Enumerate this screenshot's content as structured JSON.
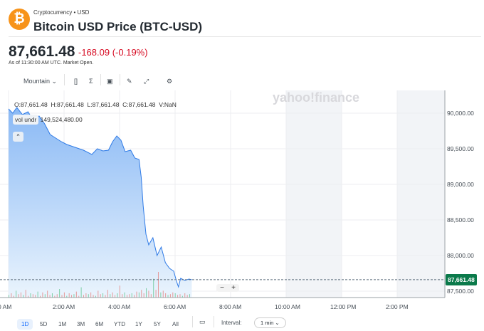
{
  "header": {
    "category": "Cryptocurrency • USD",
    "title": "Bitcoin USD Price (BTC-USD)",
    "logo_symbol": "₿"
  },
  "quote": {
    "price": "87,661.48",
    "change": "-168.09",
    "change_pct": "(-0.19%)",
    "as_of": "As of 11:30:00 AM UTC. Market Open."
  },
  "toolbar": {
    "chart_type": "Mountain",
    "icons": [
      "compare-bracket-icon",
      "indicators-sigma-icon",
      "calendar-event-icon",
      "draw-pencil-icon",
      "expand-icon",
      "settings-gear-icon"
    ]
  },
  "legend": {
    "ohlc": "O:87,661.48  H:87,661.48  L:87,661.48  C:87,661.48  V:NaN",
    "vol_label": "vol undr",
    "vol_value": "149,524,480.00",
    "collapse": "^"
  },
  "watermark": "yahoo!finance",
  "last_badge": "87,661.48",
  "zoom": {
    "minus": "−",
    "plus": "+"
  },
  "ranges": [
    "1D",
    "5D",
    "1M",
    "3M",
    "6M",
    "YTD",
    "1Y",
    "5Y",
    "All"
  ],
  "selected_range": "1D",
  "interval": {
    "label": "Interval:",
    "value": "1 min ⌄"
  },
  "chart_data": {
    "type": "area",
    "xlabel": "",
    "ylabel": "",
    "x_ticks": [
      {
        "h": 0,
        "label": "0 AM"
      },
      {
        "h": 2,
        "label": "2:00 AM"
      },
      {
        "h": 4,
        "label": "4:00 AM"
      },
      {
        "h": 6,
        "label": "6:00 AM"
      },
      {
        "h": 8,
        "label": "8:00 AM"
      },
      {
        "h": 10,
        "label": "10:00 AM"
      },
      {
        "h": 12,
        "label": "12:00 PM"
      },
      {
        "h": 14,
        "label": "2:00 PM"
      }
    ],
    "y_ticks": [
      {
        "v": 90000,
        "label": "90,000.00"
      },
      {
        "v": 89500,
        "label": "89,500.00"
      },
      {
        "v": 89000,
        "label": "89,000.00"
      },
      {
        "v": 88500,
        "label": "88,500.00"
      },
      {
        "v": 88000,
        "label": "88,000.00"
      },
      {
        "v": 87500,
        "label": "87,500.00"
      }
    ],
    "xlim": [
      0,
      15.7
    ],
    "ylim": [
      87400,
      90320
    ],
    "shaded_ranges": [
      [
        10,
        12
      ],
      [
        14,
        15.7
      ]
    ],
    "last_price": 87661.48,
    "series": [
      [
        0,
        90060
      ],
      [
        0.15,
        90000
      ],
      [
        0.3,
        90080
      ],
      [
        0.5,
        89980
      ],
      [
        0.7,
        90020
      ],
      [
        0.9,
        89900
      ],
      [
        1.1,
        89960
      ],
      [
        1.3,
        89850
      ],
      [
        1.5,
        89700
      ],
      [
        1.7,
        89650
      ],
      [
        1.9,
        89600
      ],
      [
        2.1,
        89560
      ],
      [
        2.4,
        89520
      ],
      [
        2.7,
        89480
      ],
      [
        3,
        89420
      ],
      [
        3.2,
        89500
      ],
      [
        3.4,
        89470
      ],
      [
        3.6,
        89480
      ],
      [
        3.75,
        89600
      ],
      [
        3.9,
        89680
      ],
      [
        4.05,
        89620
      ],
      [
        4.2,
        89460
      ],
      [
        4.4,
        89480
      ],
      [
        4.55,
        89370
      ],
      [
        4.7,
        89350
      ],
      [
        4.78,
        89100
      ],
      [
        4.85,
        88700
      ],
      [
        4.95,
        88300
      ],
      [
        5.05,
        88150
      ],
      [
        5.2,
        88250
      ],
      [
        5.35,
        88000
      ],
      [
        5.5,
        88120
      ],
      [
        5.65,
        87900
      ],
      [
        5.8,
        87820
      ],
      [
        5.95,
        87780
      ],
      [
        6.05,
        87640
      ],
      [
        6.12,
        87560
      ],
      [
        6.2,
        87680
      ],
      [
        6.35,
        87650
      ],
      [
        6.5,
        87670
      ],
      [
        6.6,
        87661
      ]
    ],
    "volume": [
      3,
      5,
      2,
      8,
      4,
      6,
      3,
      9,
      2,
      5,
      4,
      3,
      7,
      2,
      6,
      4,
      8,
      3,
      5,
      2,
      4,
      10,
      3,
      6,
      2,
      5,
      3,
      4,
      7,
      2,
      12,
      3,
      5,
      4,
      6,
      3,
      2,
      8,
      4,
      5,
      3,
      9,
      4,
      6,
      3,
      5,
      14,
      4,
      6,
      3,
      4,
      5,
      3,
      7,
      6,
      9,
      5,
      11,
      8,
      4,
      22,
      9,
      30,
      6,
      8,
      5,
      3,
      4,
      6,
      5,
      3,
      4,
      2,
      5,
      3,
      4
    ]
  }
}
